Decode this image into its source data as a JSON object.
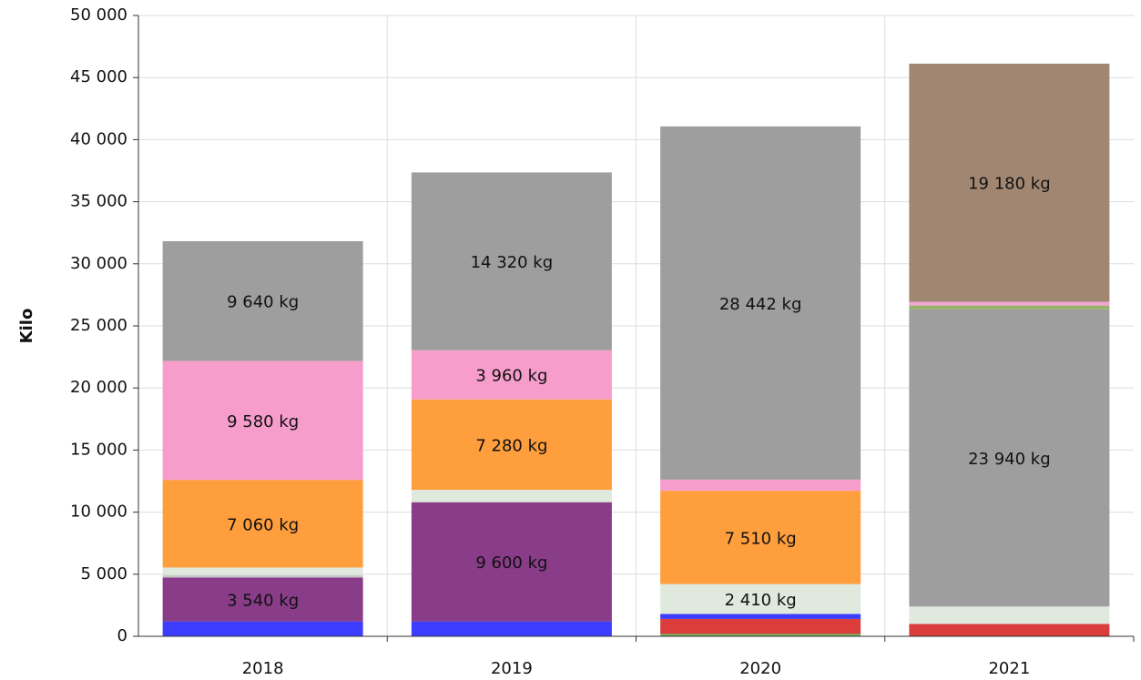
{
  "chart_data": {
    "type": "stacked_bar",
    "y_label": "Kilo",
    "categories": [
      "2018",
      "2019",
      "2020",
      "2021"
    ],
    "ylim": [
      0,
      50000
    ],
    "yticks": [
      0,
      {
        "value": 5000,
        "label": "5 000"
      },
      {
        "value": 10000,
        "label": "10 000"
      },
      {
        "value": 15000,
        "label": "15 000"
      },
      {
        "value": 20000,
        "label": "20 000"
      },
      {
        "value": 25000,
        "label": "25 000"
      },
      {
        "value": 30000,
        "label": "30 000"
      },
      {
        "value": 35000,
        "label": "35 000"
      },
      {
        "value": 40000,
        "label": "40 000"
      },
      {
        "value": 45000,
        "label": "45 000"
      },
      {
        "value": 50000,
        "label": "50 000"
      }
    ],
    "grid": true,
    "series": [
      {
        "color": "#6aa84f",
        "values": [
          0,
          0,
          200,
          0
        ],
        "value_labels": [
          null,
          null,
          null,
          null
        ]
      },
      {
        "color": "#d93333",
        "values": [
          0,
          0,
          1200,
          1000
        ],
        "value_labels": [
          null,
          null,
          null,
          null
        ]
      },
      {
        "color": "#3333ff",
        "values": [
          1200,
          1200,
          400,
          0
        ],
        "value_labels": [
          null,
          null,
          null,
          null
        ]
      },
      {
        "color": "#833282",
        "values": [
          3540,
          9600,
          0,
          0
        ],
        "value_labels": [
          "3 540 kg",
          "9 600 kg",
          null,
          null
        ]
      },
      {
        "color": "#c4c4c4",
        "values": [
          200,
          0,
          0,
          0
        ],
        "value_labels": [
          null,
          null,
          null,
          null
        ]
      },
      {
        "color": "#dde8dc",
        "values": [
          600,
          1000,
          2410,
          1400
        ],
        "value_labels": [
          null,
          null,
          "2 410 kg",
          null
        ]
      },
      {
        "color": "#ff9933",
        "values": [
          7060,
          7280,
          7510,
          0
        ],
        "value_labels": [
          "7 060 kg",
          "7 280 kg",
          "7 510 kg",
          null
        ]
      },
      {
        "color": "#f598c9",
        "values": [
          9580,
          3960,
          900,
          0
        ],
        "value_labels": [
          "9 580 kg",
          "3 960 kg",
          null,
          null
        ]
      },
      {
        "color": "#999999",
        "values": [
          9640,
          14320,
          28442,
          23940
        ],
        "value_labels": [
          "9 640 kg",
          "14 320 kg",
          "28 442 kg",
          "23 940 kg"
        ]
      },
      {
        "color": "#8fb060",
        "values": [
          0,
          0,
          0,
          300
        ],
        "value_labels": [
          null,
          null,
          null,
          null
        ]
      },
      {
        "color": "#f0a0d0",
        "values": [
          0,
          0,
          0,
          300
        ],
        "value_labels": [
          null,
          null,
          null,
          null
        ]
      },
      {
        "color": "#9c8169",
        "values": [
          0,
          0,
          0,
          19180
        ],
        "value_labels": [
          null,
          null,
          null,
          "19 180 kg"
        ]
      }
    ]
  }
}
